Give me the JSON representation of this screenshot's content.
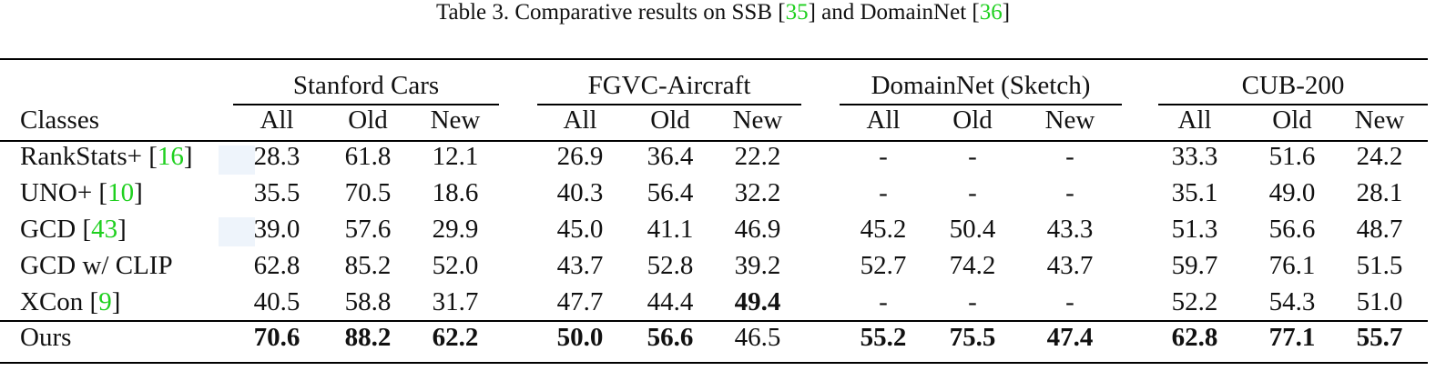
{
  "caption": {
    "prefix": "Table 3. Comparative results on SSB [",
    "ref1": "35",
    "middle": "] and DomainNet [",
    "ref2": "36",
    "suffix": "]"
  },
  "header": {
    "classes_label": "Classes",
    "groups": [
      "Stanford Cars",
      "FGVC-Aircraft",
      "DomainNet (Sketch)",
      "CUB-200"
    ],
    "subcols": [
      "All",
      "Old",
      "New"
    ]
  },
  "rows": [
    {
      "name": "RankStats+ [",
      "ref": "16",
      "close": "]",
      "values": [
        "28.3",
        "61.8",
        "12.1",
        "26.9",
        "36.4",
        "22.2",
        "-",
        "-",
        "-",
        "33.3",
        "51.6",
        "24.2"
      ],
      "bold": []
    },
    {
      "name": "UNO+ [",
      "ref": "10",
      "close": "]",
      "values": [
        "35.5",
        "70.5",
        "18.6",
        "40.3",
        "56.4",
        "32.2",
        "-",
        "-",
        "-",
        "35.1",
        "49.0",
        "28.1"
      ],
      "bold": []
    },
    {
      "name": "GCD [",
      "ref": "43",
      "close": "]",
      "values": [
        "39.0",
        "57.6",
        "29.9",
        "45.0",
        "41.1",
        "46.9",
        "45.2",
        "50.4",
        "43.3",
        "51.3",
        "56.6",
        "48.7"
      ],
      "bold": []
    },
    {
      "name": "GCD w/ CLIP",
      "ref": "",
      "close": "",
      "values": [
        "62.8",
        "85.2",
        "52.0",
        "43.7",
        "52.8",
        "39.2",
        "52.7",
        "74.2",
        "43.7",
        "59.7",
        "76.1",
        "51.5"
      ],
      "bold": []
    },
    {
      "name": "XCon [",
      "ref": "9",
      "close": "]",
      "values": [
        "40.5",
        "58.8",
        "31.7",
        "47.7",
        "44.4",
        "49.4",
        "-",
        "-",
        "-",
        "52.2",
        "54.3",
        "51.0"
      ],
      "bold": [
        5
      ]
    },
    {
      "name": "Ours",
      "ref": "",
      "close": "",
      "values": [
        "70.6",
        "88.2",
        "62.2",
        "50.0",
        "56.6",
        "46.5",
        "55.2",
        "75.5",
        "47.4",
        "62.8",
        "77.1",
        "55.7"
      ],
      "bold": [
        0,
        1,
        2,
        3,
        4,
        6,
        7,
        8,
        9,
        10,
        11
      ]
    }
  ]
}
